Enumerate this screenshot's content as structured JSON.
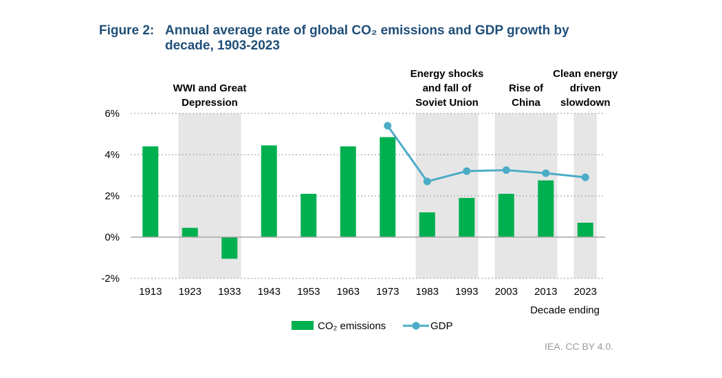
{
  "figure": {
    "label": "Figure 2:",
    "title": "Annual average rate of global CO₂ emissions and GDP growth by decade, 1903-2023"
  },
  "credit": "IEA. CC BY 4.0.",
  "chart_data": {
    "type": "bar",
    "title": "Annual average rate of global CO₂ emissions and GDP growth by decade, 1903-2023",
    "xlabel": "Decade ending",
    "ylabel": "",
    "categories": [
      "1913",
      "1923",
      "1933",
      "1943",
      "1953",
      "1963",
      "1973",
      "1983",
      "1993",
      "2003",
      "2013",
      "2023"
    ],
    "ylim": [
      -2,
      6
    ],
    "yticks": [
      -2,
      0,
      2,
      4,
      6
    ],
    "ytick_labels": [
      "-2%",
      "0%",
      "2%",
      "4%",
      "6%"
    ],
    "grid": true,
    "series": [
      {
        "name": "CO₂ emissions",
        "kind": "bar",
        "color": "#00b050",
        "values": [
          4.4,
          0.45,
          -1.05,
          4.45,
          2.1,
          4.4,
          4.85,
          1.2,
          1.9,
          2.1,
          2.75,
          0.7
        ]
      },
      {
        "name": "GDP",
        "kind": "line",
        "color": "#4bacc6",
        "values": [
          null,
          null,
          null,
          null,
          null,
          null,
          5.4,
          2.7,
          3.2,
          3.25,
          3.1,
          2.9
        ]
      }
    ],
    "shaded_periods": [
      {
        "label": "WWI and Great Depression",
        "label_lines": [
          "WWI and Great",
          "Depression"
        ],
        "from": "1923",
        "to": "1933"
      },
      {
        "label": "Energy shocks and fall of Soviet Union",
        "label_lines": [
          "Energy shocks",
          "and fall of",
          "Soviet Union"
        ],
        "from": "1983",
        "to": "1993"
      },
      {
        "label": "Rise of China",
        "label_lines": [
          "Rise of",
          "China"
        ],
        "from": "2003",
        "to": "2013"
      },
      {
        "label": "Clean energy driven slowdown",
        "label_lines": [
          "Clean energy",
          "driven",
          "slowdown"
        ],
        "from": "2023",
        "to": "2023"
      }
    ],
    "legend": {
      "position": "bottom-center",
      "items": [
        "CO₂ emissions",
        "GDP"
      ]
    },
    "colors": {
      "shade": "#e6e6e6",
      "grid": "#a6a6a6",
      "axis": "#a6a6a6",
      "text": "#000000"
    }
  }
}
